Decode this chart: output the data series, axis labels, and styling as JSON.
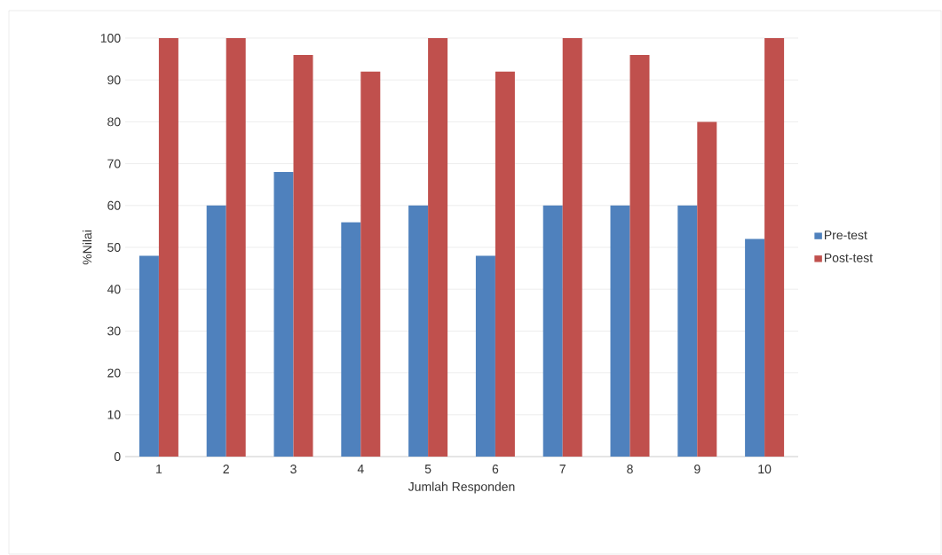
{
  "chart_data": {
    "type": "bar",
    "xlabel": "Jumlah Responden",
    "ylabel": "%Nilai",
    "categories": [
      "1",
      "2",
      "3",
      "4",
      "5",
      "6",
      "7",
      "8",
      "9",
      "10"
    ],
    "series": [
      {
        "name": "Pre-test",
        "color": "#4f81bd",
        "values": [
          48,
          60,
          68,
          56,
          60,
          48,
          60,
          60,
          60,
          52
        ]
      },
      {
        "name": "Post-test",
        "color": "#c0504d",
        "values": [
          100,
          100,
          96,
          92,
          100,
          92,
          100,
          96,
          80,
          100
        ]
      }
    ],
    "ylim": [
      0,
      100
    ],
    "yticks": [
      0,
      10,
      20,
      30,
      40,
      50,
      60,
      70,
      80,
      90,
      100
    ],
    "grid": "y",
    "legend": "right"
  }
}
